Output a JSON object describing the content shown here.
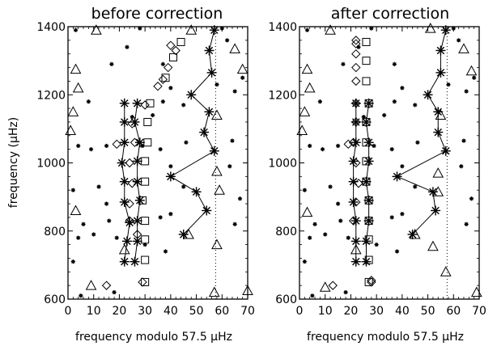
{
  "ylabel": "frequency (μHz)",
  "chart_data": [
    {
      "type": "scatter",
      "title": "before correction",
      "xlabel": "frequency modulo 57.5 μHz",
      "ylabel": "frequency (μHz)",
      "xlim": [
        0,
        70
      ],
      "ylim": [
        600,
        1400
      ],
      "xticks": [
        "0",
        "10",
        "20",
        "30",
        "40",
        "50",
        "60",
        "70"
      ],
      "yticks": [
        "600",
        "800",
        "1000",
        "1200",
        "1400"
      ],
      "reference_line_x": 57.5,
      "series": [
        {
          "marker": "asterisk-line",
          "points": [
            [
              22,
              710
            ],
            [
              23,
              770
            ],
            [
              24,
              825
            ],
            [
              22,
              885
            ],
            [
              22,
              945
            ],
            [
              21,
              1000
            ],
            [
              22,
              1060
            ],
            [
              22,
              1120
            ],
            [
              22,
              1175
            ]
          ]
        },
        {
          "marker": "asterisk-line",
          "points": [
            [
              26,
              710
            ],
            [
              27,
              770
            ],
            [
              27,
              830
            ],
            [
              28,
              890
            ],
            [
              27,
              945
            ],
            [
              27,
              1005
            ],
            [
              28,
              1060
            ],
            [
              26,
              1120
            ],
            [
              27,
              1175
            ]
          ]
        },
        {
          "marker": "asterisk-line",
          "points": [
            [
              45,
              790
            ],
            [
              54,
              860
            ],
            [
              50,
              915
            ],
            [
              40,
              960
            ],
            [
              57,
              1035
            ],
            [
              53,
              1090
            ],
            [
              55,
              1150
            ],
            [
              48,
              1200
            ],
            [
              56,
              1265
            ],
            [
              55,
              1330
            ],
            [
              57,
              1390
            ]
          ]
        },
        {
          "marker": "square",
          "points": [
            [
              30,
              650
            ],
            [
              30,
              715
            ],
            [
              30,
              775
            ],
            [
              30,
              830
            ],
            [
              29,
              890
            ],
            [
              30,
              945
            ],
            [
              30,
              1005
            ],
            [
              31,
              1060
            ],
            [
              31,
              1120
            ],
            [
              32,
              1175
            ],
            [
              38,
              1250
            ],
            [
              41,
              1310
            ],
            [
              44,
              1355
            ]
          ]
        },
        {
          "marker": "diamond",
          "points": [
            [
              15,
              640
            ],
            [
              29,
              650
            ],
            [
              27,
              790
            ],
            [
              24,
              830
            ],
            [
              24,
              880
            ],
            [
              25,
              940
            ],
            [
              24,
              1000
            ],
            [
              19,
              1055
            ],
            [
              26,
              1060
            ],
            [
              25,
              1115
            ],
            [
              30,
              1170
            ],
            [
              35,
              1225
            ],
            [
              37,
              1245
            ],
            [
              39,
              1280
            ],
            [
              42,
              1330
            ],
            [
              40,
              1345
            ]
          ]
        },
        {
          "marker": "triangle",
          "points": [
            [
              9,
              640
            ],
            [
              3,
              860
            ],
            [
              57,
              620
            ],
            [
              22,
              745
            ],
            [
              47,
              790
            ],
            [
              58,
              760
            ],
            [
              59,
              920
            ],
            [
              58,
              975
            ],
            [
              58,
              1140
            ],
            [
              1,
              1095
            ],
            [
              2,
              1150
            ],
            [
              4,
              1220
            ],
            [
              3,
              1275
            ],
            [
              11,
              1390
            ],
            [
              48,
              1390
            ],
            [
              65,
              1335
            ],
            [
              68,
              1275
            ],
            [
              70,
              625
            ]
          ]
        },
        {
          "marker": "small-star",
          "points": [
            [
              5,
              610
            ],
            [
              18,
              620
            ],
            [
              2,
              710
            ],
            [
              4,
              780
            ],
            [
              10,
              790
            ],
            [
              19,
              780
            ],
            [
              30,
              760
            ],
            [
              38,
              740
            ],
            [
              6,
              820
            ],
            [
              16,
              830
            ],
            [
              36,
              840
            ],
            [
              40,
              850
            ],
            [
              65,
              820
            ],
            [
              15,
              880
            ],
            [
              2,
              920
            ],
            [
              12,
              930
            ],
            [
              45,
              930
            ],
            [
              67,
              895
            ],
            [
              40,
              990
            ],
            [
              63,
              990
            ],
            [
              4,
              1050
            ],
            [
              9,
              1040
            ],
            [
              15,
              1050
            ],
            [
              29,
              1050
            ],
            [
              36,
              1040
            ],
            [
              46,
              1060
            ],
            [
              64,
              1065
            ],
            [
              25,
              1135
            ],
            [
              33,
              1140
            ],
            [
              8,
              1180
            ],
            [
              37,
              1180
            ],
            [
              45,
              1170
            ],
            [
              40,
              1220
            ],
            [
              58,
              1230
            ],
            [
              65,
              1210
            ],
            [
              17,
              1290
            ],
            [
              68,
              1250
            ],
            [
              23,
              1340
            ],
            [
              37,
              1290
            ],
            [
              62,
              1360
            ],
            [
              3,
              1390
            ],
            [
              28,
              1395
            ],
            [
              60,
              1395
            ]
          ]
        }
      ]
    },
    {
      "type": "scatter",
      "title": "after correction",
      "xlabel": "frequency modulo 57.5 μHz",
      "ylabel": "",
      "xlim": [
        0,
        70
      ],
      "ylim": [
        600,
        1400
      ],
      "xticks": [
        "0",
        "10",
        "20",
        "30",
        "40",
        "50",
        "60",
        "70"
      ],
      "yticks": [
        "600",
        "800",
        "1000",
        "1200",
        "1400"
      ],
      "reference_line_x": 57.5,
      "series": [
        {
          "marker": "asterisk-line",
          "points": [
            [
              22,
              710
            ],
            [
              22,
              770
            ],
            [
              22,
              830
            ],
            [
              21,
              885
            ],
            [
              21,
              945
            ],
            [
              21,
              1005
            ],
            [
              22,
              1060
            ],
            [
              22,
              1120
            ],
            [
              22,
              1175
            ]
          ]
        },
        {
          "marker": "asterisk-line",
          "points": [
            [
              26,
              710
            ],
            [
              26,
              770
            ],
            [
              27,
              830
            ],
            [
              27,
              890
            ],
            [
              26,
              945
            ],
            [
              27,
              1005
            ],
            [
              27,
              1060
            ],
            [
              26,
              1120
            ],
            [
              27,
              1175
            ]
          ]
        },
        {
          "marker": "asterisk-line",
          "points": [
            [
              44,
              790
            ],
            [
              53,
              860
            ],
            [
              52,
              915
            ],
            [
              38,
              960
            ],
            [
              57,
              1035
            ],
            [
              54,
              1090
            ],
            [
              54,
              1150
            ],
            [
              50,
              1200
            ],
            [
              55,
              1265
            ],
            [
              55,
              1330
            ],
            [
              57,
              1390
            ]
          ]
        },
        {
          "marker": "square",
          "points": [
            [
              27,
              650
            ],
            [
              27,
              715
            ],
            [
              27,
              775
            ],
            [
              27,
              830
            ],
            [
              27,
              890
            ],
            [
              26,
              945
            ],
            [
              26,
              1005
            ],
            [
              26,
              1060
            ],
            [
              26,
              1120
            ],
            [
              27,
              1175
            ],
            [
              26,
              1240
            ],
            [
              26,
              1300
            ],
            [
              26,
              1355
            ]
          ]
        },
        {
          "marker": "diamond",
          "points": [
            [
              13,
              640
            ],
            [
              28,
              650
            ],
            [
              28,
              655
            ],
            [
              21,
              830
            ],
            [
              22,
              885
            ],
            [
              23,
              940
            ],
            [
              22,
              1000
            ],
            [
              19,
              1055
            ],
            [
              21,
              1060
            ],
            [
              22,
              1120
            ],
            [
              22,
              1175
            ],
            [
              22,
              1240
            ],
            [
              22,
              1280
            ],
            [
              22,
              1320
            ],
            [
              22,
              1350
            ],
            [
              22,
              1360
            ]
          ]
        },
        {
          "marker": "triangle",
          "points": [
            [
              10,
              635
            ],
            [
              3,
              855
            ],
            [
              57,
              680
            ],
            [
              22,
              745
            ],
            [
              45,
              790
            ],
            [
              52,
              755
            ],
            [
              54,
              915
            ],
            [
              54,
              970
            ],
            [
              55,
              1140
            ],
            [
              1,
              1095
            ],
            [
              2,
              1150
            ],
            [
              4,
              1220
            ],
            [
              3,
              1275
            ],
            [
              12,
              1390
            ],
            [
              51,
              1395
            ],
            [
              64,
              1335
            ],
            [
              67,
              1270
            ],
            [
              69,
              620
            ]
          ]
        },
        {
          "marker": "small-star",
          "points": [
            [
              5,
              610
            ],
            [
              18,
              620
            ],
            [
              2,
              710
            ],
            [
              4,
              780
            ],
            [
              10,
              790
            ],
            [
              19,
              780
            ],
            [
              30,
              760
            ],
            [
              38,
              740
            ],
            [
              6,
              820
            ],
            [
              16,
              830
            ],
            [
              36,
              840
            ],
            [
              40,
              850
            ],
            [
              65,
              820
            ],
            [
              15,
              880
            ],
            [
              2,
              920
            ],
            [
              12,
              930
            ],
            [
              45,
              930
            ],
            [
              67,
              895
            ],
            [
              40,
              990
            ],
            [
              63,
              990
            ],
            [
              4,
              1050
            ],
            [
              9,
              1040
            ],
            [
              15,
              1050
            ],
            [
              29,
              1050
            ],
            [
              36,
              1040
            ],
            [
              46,
              1060
            ],
            [
              64,
              1065
            ],
            [
              25,
              1135
            ],
            [
              33,
              1140
            ],
            [
              8,
              1180
            ],
            [
              37,
              1180
            ],
            [
              45,
              1170
            ],
            [
              40,
              1220
            ],
            [
              58,
              1230
            ],
            [
              65,
              1210
            ],
            [
              17,
              1290
            ],
            [
              68,
              1250
            ],
            [
              23,
              1340
            ],
            [
              37,
              1290
            ],
            [
              62,
              1360
            ],
            [
              3,
              1390
            ],
            [
              28,
              1395
            ],
            [
              60,
              1395
            ]
          ]
        }
      ]
    }
  ]
}
